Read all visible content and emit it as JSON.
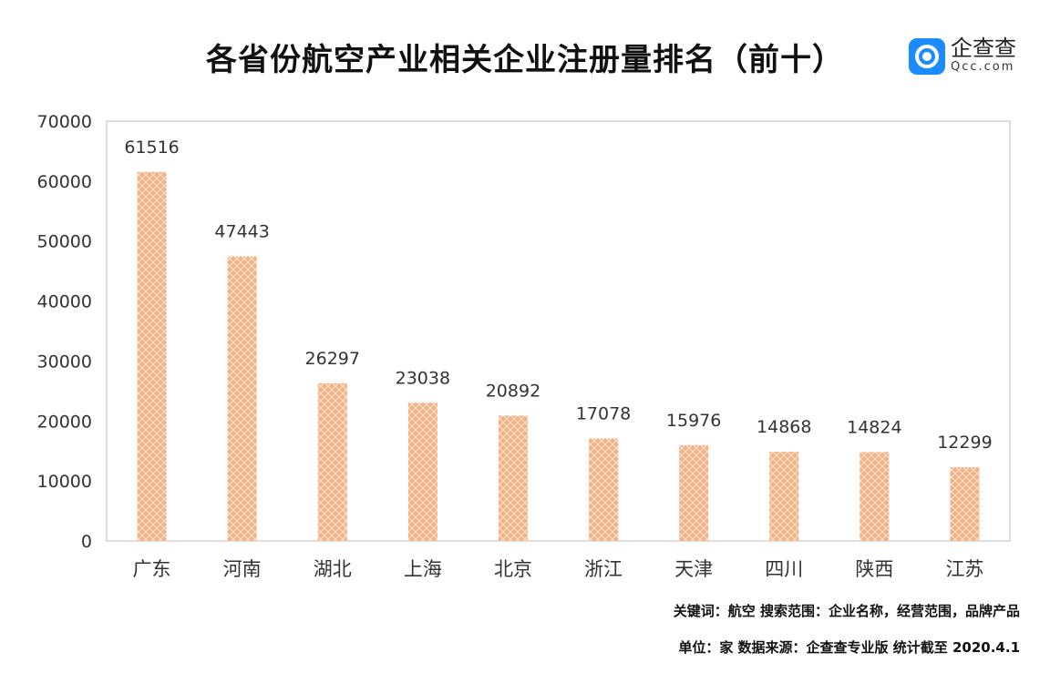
{
  "header": {
    "title": "各省份航空产业相关企业注册量排名（前十）",
    "logo_name": "企查查",
    "logo_url": "Qcc.com"
  },
  "chart_data": {
    "type": "bar",
    "title": "各省份航空产业相关企业注册量排名（前十）",
    "categories": [
      "广东",
      "河南",
      "湖北",
      "上海",
      "北京",
      "浙江",
      "天津",
      "四川",
      "陕西",
      "江苏"
    ],
    "values": [
      61516,
      47443,
      26297,
      23038,
      20892,
      17078,
      15976,
      14868,
      14824,
      12299
    ],
    "ylim": [
      0,
      70000
    ],
    "yticks": [
      0,
      10000,
      20000,
      30000,
      40000,
      50000,
      60000,
      70000
    ],
    "xlabel": "",
    "ylabel": "",
    "grid": false,
    "bar_color": "#f4b183",
    "bar_pattern_color": "#ffffff"
  },
  "footer": {
    "keywords": "关键词：航空  搜索范围：企业名称，经营范围，品牌产品",
    "source": "单位：家    数据来源：企查查专业版    统计截至 2020.4.1"
  }
}
